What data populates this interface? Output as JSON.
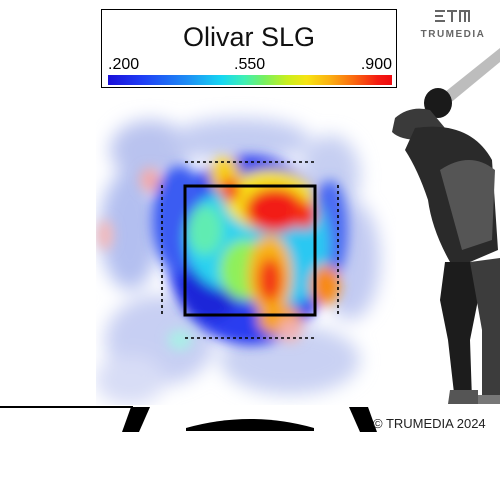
{
  "chart_data": {
    "type": "heatmap",
    "title": "Olivar SLG",
    "metric": "SLG",
    "scale": {
      "min": 0.2,
      "mid": 0.55,
      "max": 0.9
    },
    "scale_labels": [
      ".200",
      ".550",
      ".900"
    ],
    "colormap": "blue-cyan-green-yellow-red",
    "cells": [
      {
        "zone": "upper-middle",
        "level": 0.9
      },
      {
        "zone": "upper-right",
        "level": 0.9
      },
      {
        "zone": "upper-left-above-zone",
        "level": 0.85
      },
      {
        "zone": "center",
        "level": 0.75
      },
      {
        "zone": "lower-center",
        "level": 0.85
      },
      {
        "zone": "lower-left",
        "level": 0.25
      },
      {
        "zone": "middle-left",
        "level": 0.45
      },
      {
        "zone": "right-edge",
        "level": 0.85
      },
      {
        "zone": "outside-left",
        "level": 0.3
      }
    ]
  },
  "brand": {
    "name": "TRUMEDIA",
    "logo": "trumedia-logo"
  },
  "copyright": "© TRUMEDIA 2024",
  "colors": {
    "frame": "#000000",
    "batter_dark": "#1a1a1a",
    "batter_light": "#bdbdbd"
  }
}
